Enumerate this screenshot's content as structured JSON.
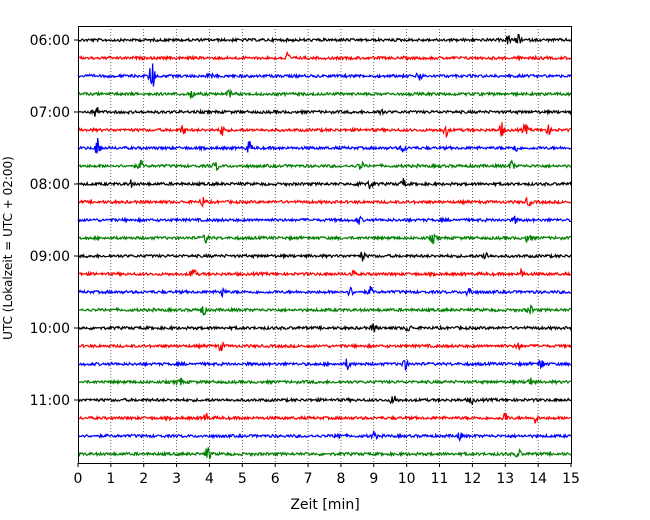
{
  "chart_data": {
    "type": "line",
    "title": "",
    "xlabel": "Zeit  [min]",
    "ylabel": "UTC (Lokalzeit = UTC + 02:00)",
    "xlim": [
      0,
      15
    ],
    "x_ticks": [
      "0",
      "1",
      "2",
      "3",
      "4",
      "5",
      "6",
      "7",
      "8",
      "9",
      "10",
      "11",
      "12",
      "13",
      "14",
      "15"
    ],
    "y_ticks": [
      {
        "label": "06:00",
        "row": 0
      },
      {
        "label": "07:00",
        "row": 4
      },
      {
        "label": "08:00",
        "row": 8
      },
      {
        "label": "09:00",
        "row": 12
      },
      {
        "label": "10:00",
        "row": 16
      },
      {
        "label": "11:00",
        "row": 20
      }
    ],
    "grid": "vertical dotted",
    "colors": [
      "#000000",
      "#ff0000",
      "#0000ff",
      "#008000"
    ],
    "traces": [
      {
        "start": "06:00",
        "color": "#000000",
        "events": [
          [
            13.1,
            0.4
          ],
          [
            13.4,
            0.4
          ]
        ]
      },
      {
        "start": "06:15",
        "color": "#ff0000",
        "events": [
          [
            6.35,
            0.5
          ]
        ]
      },
      {
        "start": "06:30",
        "color": "#0000ff",
        "events": [
          [
            2.25,
            1.5
          ],
          [
            4.0,
            0.3
          ],
          [
            10.4,
            0.4
          ]
        ]
      },
      {
        "start": "06:45",
        "color": "#008000",
        "events": [
          [
            3.45,
            0.4
          ],
          [
            4.6,
            0.3
          ]
        ]
      },
      {
        "start": "07:00",
        "color": "#000000",
        "events": [
          [
            0.55,
            0.6
          ],
          [
            9.2,
            0.3
          ]
        ]
      },
      {
        "start": "07:15",
        "color": "#ff0000",
        "events": [
          [
            3.2,
            0.4
          ],
          [
            4.4,
            0.5
          ],
          [
            11.2,
            0.5
          ],
          [
            12.9,
            0.6
          ],
          [
            13.6,
            0.5
          ],
          [
            14.3,
            0.4
          ]
        ]
      },
      {
        "start": "07:30",
        "color": "#0000ff",
        "events": [
          [
            0.6,
            0.8
          ],
          [
            5.2,
            0.6
          ],
          [
            9.9,
            0.4
          ],
          [
            13.3,
            0.4
          ]
        ]
      },
      {
        "start": "07:45",
        "color": "#008000",
        "events": [
          [
            1.9,
            0.4
          ],
          [
            4.2,
            0.4
          ],
          [
            8.6,
            0.4
          ],
          [
            13.2,
            0.4
          ]
        ]
      },
      {
        "start": "08:00",
        "color": "#000000",
        "events": [
          [
            1.6,
            0.3
          ],
          [
            8.6,
            0.4
          ],
          [
            8.9,
            0.4
          ],
          [
            9.9,
            0.4
          ]
        ]
      },
      {
        "start": "08:15",
        "color": "#ff0000",
        "events": [
          [
            3.8,
            0.4
          ],
          [
            13.7,
            0.4
          ]
        ]
      },
      {
        "start": "08:30",
        "color": "#0000ff",
        "events": [
          [
            8.55,
            0.3
          ],
          [
            13.3,
            0.3
          ]
        ]
      },
      {
        "start": "08:45",
        "color": "#008000",
        "events": [
          [
            3.9,
            0.4
          ],
          [
            10.8,
            0.4
          ],
          [
            13.7,
            0.4
          ]
        ]
      },
      {
        "start": "09:00",
        "color": "#000000",
        "events": [
          [
            8.65,
            0.4
          ],
          [
            12.4,
            0.4
          ]
        ]
      },
      {
        "start": "09:15",
        "color": "#ff0000",
        "events": [
          [
            3.5,
            0.6
          ],
          [
            8.35,
            0.3
          ],
          [
            13.5,
            0.4
          ]
        ]
      },
      {
        "start": "09:30",
        "color": "#0000ff",
        "events": [
          [
            4.4,
            0.4
          ],
          [
            8.3,
            0.4
          ],
          [
            8.9,
            0.4
          ],
          [
            11.9,
            0.6
          ]
        ]
      },
      {
        "start": "09:45",
        "color": "#008000",
        "events": [
          [
            3.8,
            0.5
          ],
          [
            13.75,
            0.4
          ]
        ]
      },
      {
        "start": "10:00",
        "color": "#000000",
        "events": [
          [
            9.0,
            0.4
          ],
          [
            10.05,
            0.3
          ]
        ]
      },
      {
        "start": "10:15",
        "color": "#ff0000",
        "events": [
          [
            4.35,
            0.4
          ],
          [
            13.4,
            0.4
          ]
        ]
      },
      {
        "start": "10:30",
        "color": "#0000ff",
        "events": [
          [
            8.2,
            0.5
          ],
          [
            9.95,
            0.5
          ],
          [
            14.1,
            0.5
          ]
        ]
      },
      {
        "start": "10:45",
        "color": "#008000",
        "events": [
          [
            3.1,
            0.4
          ],
          [
            13.75,
            0.4
          ]
        ]
      },
      {
        "start": "11:00",
        "color": "#000000",
        "events": [
          [
            9.6,
            0.5
          ],
          [
            12.0,
            0.3
          ]
        ]
      },
      {
        "start": "11:15",
        "color": "#ff0000",
        "events": [
          [
            3.9,
            0.4
          ],
          [
            13.0,
            0.5
          ],
          [
            13.9,
            0.4
          ]
        ]
      },
      {
        "start": "11:30",
        "color": "#0000ff",
        "events": [
          [
            7.9,
            0.4
          ],
          [
            9.0,
            0.4
          ],
          [
            11.6,
            0.3
          ]
        ]
      },
      {
        "start": "11:45",
        "color": "#008000",
        "events": [
          [
            3.95,
            0.6
          ],
          [
            13.4,
            0.4
          ]
        ]
      }
    ]
  }
}
